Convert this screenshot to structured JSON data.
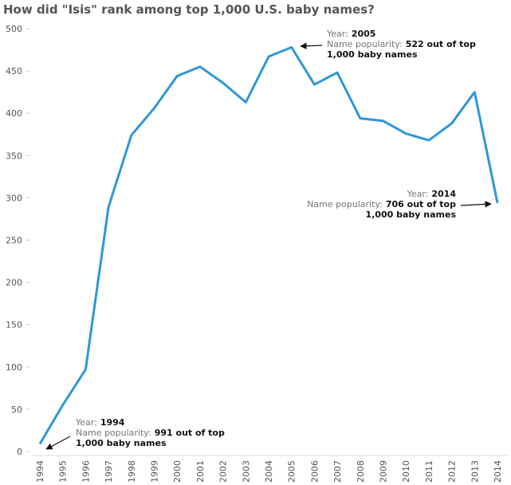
{
  "chart_data": {
    "type": "line",
    "title": "How did \"Isis\" rank among top 1,000 U.S. baby names?",
    "categories": [
      "1994",
      "1995",
      "1996",
      "1997",
      "1998",
      "1999",
      "2000",
      "2001",
      "2002",
      "2003",
      "2004",
      "2005",
      "2006",
      "2007",
      "2008",
      "2009",
      "2010",
      "2011",
      "2012",
      "2013",
      "2014"
    ],
    "values": [
      9,
      55,
      97,
      289,
      374,
      406,
      444,
      455,
      436,
      413,
      467,
      478,
      434,
      448,
      394,
      391,
      376,
      368,
      388,
      425,
      294
    ],
    "color": "#2f97d8",
    "ylim": [
      0,
      500
    ],
    "yticks": [
      0,
      50,
      100,
      150,
      200,
      250,
      300,
      350,
      400,
      450,
      500
    ],
    "annotations": [
      {
        "year_label": "Year:",
        "year": "1994",
        "popularity_label": "Name popularity:",
        "popularity": "991 out of top",
        "popularity_cont": "1,000 baby names"
      },
      {
        "year_label": "Year:",
        "year": "2005",
        "popularity_label": "Name popularity:",
        "popularity": "522 out of top",
        "popularity_cont": "1,000 baby names"
      },
      {
        "year_label": "Year:",
        "year": "2014",
        "popularity_label": "Name popularity:",
        "popularity": "706 out of top",
        "popularity_cont": "1,000 baby names"
      }
    ]
  }
}
